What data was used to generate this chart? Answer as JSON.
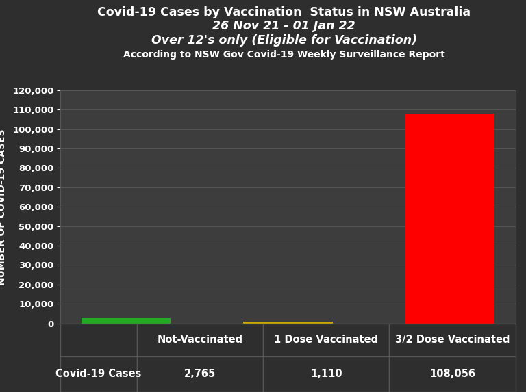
{
  "title_line1": "Covid-19 Cases by Vaccination  Status in NSW Australia",
  "title_line2": "26 Nov 21 - 01 Jan 22",
  "title_line3": "Over 12's only (Eligible for Vaccination)",
  "title_line4": "According to NSW Gov Covid-19 Weekly Surveillance Report",
  "categories": [
    "Not-Vaccinated",
    "1 Dose Vaccinated",
    "3/2 Dose Vaccinated"
  ],
  "values": [
    2765,
    1110,
    108056
  ],
  "bar_colors": [
    "#22aa22",
    "#ccaa00",
    "#ff0000"
  ],
  "ylabel": "NUMBER OF COVID-19 CASES",
  "ylim": [
    0,
    120000
  ],
  "yticks": [
    0,
    10000,
    20000,
    30000,
    40000,
    50000,
    60000,
    70000,
    80000,
    90000,
    100000,
    110000,
    120000
  ],
  "table_row_label": "Covid-19 Cases",
  "table_values": [
    "2,765",
    "1,110",
    "108,056"
  ],
  "background_color": "#2e2e2e",
  "plot_background_color": "#3d3d3d",
  "text_color": "#ffffff",
  "grid_color": "#555555",
  "title_fontsize": 12.5,
  "subtitle_fontsize": 12.5,
  "source_fontsize": 10,
  "axis_label_fontsize": 10,
  "tick_fontsize": 9.5,
  "table_fontsize": 10.5
}
